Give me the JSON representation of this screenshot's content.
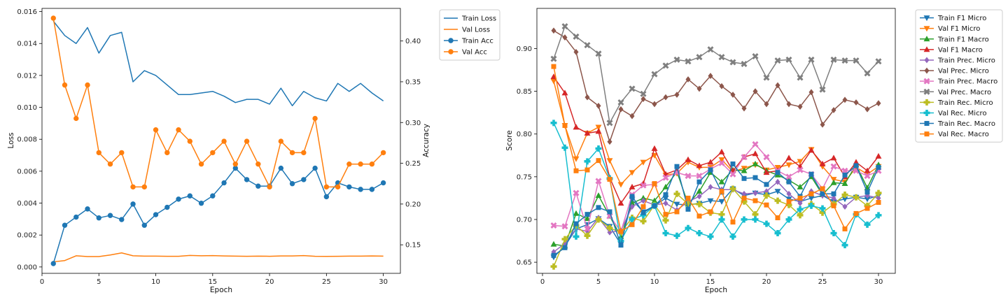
{
  "chart_data": [
    {
      "type": "line",
      "xlabel": "Epoch",
      "ylabel": "Loss",
      "ylabel_right": "Accuracy",
      "x": [
        1,
        2,
        3,
        4,
        5,
        6,
        7,
        8,
        9,
        10,
        11,
        12,
        13,
        14,
        15,
        16,
        17,
        18,
        19,
        20,
        21,
        22,
        23,
        24,
        25,
        26,
        27,
        28,
        29,
        30
      ],
      "xlim": [
        0,
        31.5
      ],
      "xticks": [
        0,
        5,
        10,
        15,
        20,
        25,
        30
      ],
      "ylim": [
        -0.0004,
        0.0162
      ],
      "yticks": [
        0.0,
        0.002,
        0.004,
        0.006,
        0.008,
        0.01,
        0.012,
        0.014,
        0.016
      ],
      "ytick_labels": [
        "0.000",
        "0.002",
        "0.004",
        "0.006",
        "0.008",
        "0.010",
        "0.012",
        "0.014",
        "0.016"
      ],
      "ylim_right": [
        0.115,
        0.44
      ],
      "yticks_right": [
        0.15,
        0.2,
        0.25,
        0.3,
        0.35,
        0.4
      ],
      "ytick_labels_right": [
        "0.15",
        "0.20",
        "0.25",
        "0.30",
        "0.35",
        "0.40"
      ],
      "legend_placement": "outside top-right",
      "series": [
        {
          "name": "Train Loss",
          "axis": "left",
          "color": "#1f77b4",
          "marker": "none",
          "values": [
            0.0154,
            0.0145,
            0.014,
            0.015,
            0.0134,
            0.0145,
            0.0147,
            0.0116,
            0.0123,
            0.012,
            0.0114,
            0.0108,
            0.0108,
            0.0109,
            0.011,
            0.0107,
            0.0103,
            0.0105,
            0.0105,
            0.0102,
            0.0112,
            0.0101,
            0.011,
            0.0106,
            0.0104,
            0.0115,
            0.011,
            0.0115,
            0.0109,
            0.0104
          ]
        },
        {
          "name": "Val Loss",
          "axis": "left",
          "color": "#ff7f0e",
          "marker": "none",
          "values": [
            0.00032,
            0.0004,
            0.0007,
            0.00065,
            0.00065,
            0.00075,
            0.00088,
            0.0007,
            0.00068,
            0.00068,
            0.00067,
            0.00067,
            0.00072,
            0.0007,
            0.00071,
            0.00069,
            0.00068,
            0.00067,
            0.00068,
            0.00067,
            0.00069,
            0.00069,
            0.00071,
            0.00067,
            0.00066,
            0.00067,
            0.00068,
            0.00068,
            0.00069,
            0.00068
          ]
        },
        {
          "name": "Train Acc",
          "axis": "right",
          "color": "#1f77b4",
          "marker": "circle",
          "values": [
            0.127,
            0.174,
            0.184,
            0.194,
            0.183,
            0.186,
            0.181,
            0.2,
            0.174,
            0.187,
            0.196,
            0.206,
            0.21,
            0.201,
            0.21,
            0.226,
            0.244,
            0.23,
            0.222,
            0.222,
            0.244,
            0.225,
            0.23,
            0.244,
            0.209,
            0.226,
            0.221,
            0.218,
            0.218,
            0.226
          ]
        },
        {
          "name": "Val Acc",
          "axis": "right",
          "color": "#ff7f0e",
          "marker": "circle",
          "values": [
            0.428,
            0.346,
            0.305,
            0.346,
            0.263,
            0.249,
            0.263,
            0.221,
            0.221,
            0.291,
            0.263,
            0.291,
            0.277,
            0.249,
            0.263,
            0.277,
            0.249,
            0.277,
            0.249,
            0.221,
            0.277,
            0.263,
            0.263,
            0.305,
            0.221,
            0.221,
            0.249,
            0.249,
            0.249,
            0.263
          ]
        }
      ]
    },
    {
      "type": "line",
      "xlabel": "Epoch",
      "ylabel": "Score",
      "x": [
        1,
        2,
        3,
        4,
        5,
        6,
        7,
        8,
        9,
        10,
        11,
        12,
        13,
        14,
        15,
        16,
        17,
        18,
        19,
        20,
        21,
        22,
        23,
        24,
        25,
        26,
        27,
        28,
        29,
        30
      ],
      "xlim": [
        -0.5,
        31.5
      ],
      "xticks": [
        0,
        5,
        10,
        15,
        20,
        25,
        30
      ],
      "ylim": [
        0.637,
        0.947
      ],
      "yticks": [
        0.65,
        0.7,
        0.75,
        0.8,
        0.85,
        0.9
      ],
      "ytick_labels": [
        "0.65",
        "0.70",
        "0.75",
        "0.80",
        "0.85",
        "0.90"
      ],
      "legend_placement": "outside top-right",
      "series": [
        {
          "name": "Train F1 Micro",
          "color": "#1f77b4",
          "marker": "triangle-down",
          "values": [
            0.656,
            0.669,
            0.689,
            0.694,
            0.701,
            0.692,
            0.671,
            0.723,
            0.709,
            0.716,
            0.725,
            0.718,
            0.717,
            0.719,
            0.722,
            0.721,
            0.736,
            0.728,
            0.731,
            0.729,
            0.733,
            0.724,
            0.721,
            0.725,
            0.728,
            0.721,
            0.724,
            0.726,
            0.724,
            0.728
          ]
        },
        {
          "name": "Val F1 Micro",
          "color": "#ff7f0e",
          "marker": "triangle-down",
          "values": [
            0.862,
            0.81,
            0.771,
            0.801,
            0.808,
            0.769,
            0.741,
            0.755,
            0.767,
            0.775,
            0.752,
            0.754,
            0.767,
            0.761,
            0.761,
            0.77,
            0.756,
            0.76,
            0.764,
            0.758,
            0.761,
            0.764,
            0.768,
            0.782,
            0.762,
            0.747,
            0.744,
            0.761,
            0.753,
            0.762
          ]
        },
        {
          "name": "Train F1 Macro",
          "color": "#2ca02c",
          "marker": "triangle-up",
          "values": [
            0.671,
            0.669,
            0.707,
            0.701,
            0.728,
            0.704,
            0.68,
            0.719,
            0.725,
            0.722,
            0.738,
            0.756,
            0.718,
            0.733,
            0.755,
            0.744,
            0.758,
            0.757,
            0.765,
            0.757,
            0.752,
            0.746,
            0.738,
            0.75,
            0.729,
            0.743,
            0.742,
            0.764,
            0.737,
            0.764
          ]
        },
        {
          "name": "Val F1 Macro",
          "color": "#d62728",
          "marker": "triangle-up",
          "values": [
            0.867,
            0.848,
            0.808,
            0.801,
            0.803,
            0.749,
            0.719,
            0.738,
            0.742,
            0.783,
            0.753,
            0.758,
            0.77,
            0.763,
            0.767,
            0.779,
            0.757,
            0.773,
            0.777,
            0.755,
            0.757,
            0.772,
            0.762,
            0.781,
            0.765,
            0.772,
            0.75,
            0.767,
            0.757,
            0.774
          ]
        },
        {
          "name": "Train Prec. Micro",
          "color": "#9467bd",
          "marker": "diamond",
          "values": [
            0.662,
            0.672,
            0.689,
            0.686,
            0.702,
            0.685,
            0.687,
            0.715,
            0.722,
            0.717,
            0.719,
            0.711,
            0.721,
            0.727,
            0.738,
            0.735,
            0.735,
            0.73,
            0.731,
            0.733,
            0.744,
            0.73,
            0.719,
            0.733,
            0.728,
            0.725,
            0.715,
            0.726,
            0.728,
            0.725
          ]
        },
        {
          "name": "Val Prec. Micro",
          "color": "#8c564b",
          "marker": "diamond",
          "values": [
            0.921,
            0.913,
            0.896,
            0.843,
            0.833,
            0.791,
            0.829,
            0.821,
            0.841,
            0.835,
            0.843,
            0.846,
            0.864,
            0.853,
            0.868,
            0.856,
            0.846,
            0.83,
            0.85,
            0.835,
            0.857,
            0.835,
            0.832,
            0.849,
            0.811,
            0.828,
            0.84,
            0.837,
            0.829,
            0.836
          ]
        },
        {
          "name": "Train Prec. Macro",
          "color": "#e377c2",
          "marker": "x",
          "values": [
            0.693,
            0.692,
            0.731,
            0.689,
            0.745,
            0.704,
            0.686,
            0.729,
            0.74,
            0.741,
            0.749,
            0.755,
            0.751,
            0.751,
            0.759,
            0.766,
            0.753,
            0.773,
            0.788,
            0.773,
            0.757,
            0.75,
            0.758,
            0.753,
            0.736,
            0.762,
            0.757,
            0.757,
            0.751,
            0.757
          ]
        },
        {
          "name": "Val Prec. Macro",
          "color": "#7f7f7f",
          "marker": "x",
          "values": [
            0.888,
            0.926,
            0.914,
            0.904,
            0.894,
            0.813,
            0.837,
            0.853,
            0.847,
            0.87,
            0.88,
            0.887,
            0.885,
            0.89,
            0.899,
            0.89,
            0.884,
            0.882,
            0.891,
            0.866,
            0.886,
            0.887,
            0.866,
            0.887,
            0.852,
            0.887,
            0.886,
            0.886,
            0.871,
            0.885
          ]
        },
        {
          "name": "Train Rec. Micro",
          "color": "#bcbd22",
          "marker": "plus",
          "values": [
            0.645,
            0.677,
            0.693,
            0.681,
            0.7,
            0.69,
            0.685,
            0.702,
            0.698,
            0.717,
            0.699,
            0.73,
            0.718,
            0.718,
            0.708,
            0.706,
            0.736,
            0.721,
            0.706,
            0.728,
            0.722,
            0.717,
            0.705,
            0.718,
            0.708,
            0.718,
            0.729,
            0.726,
            0.716,
            0.731
          ]
        },
        {
          "name": "Val Rec. Micro",
          "color": "#17becf",
          "marker": "plus",
          "values": [
            0.813,
            0.784,
            0.68,
            0.768,
            0.783,
            0.748,
            0.675,
            0.7,
            0.705,
            0.716,
            0.684,
            0.681,
            0.69,
            0.684,
            0.68,
            0.7,
            0.68,
            0.7,
            0.7,
            0.695,
            0.684,
            0.7,
            0.712,
            0.716,
            0.713,
            0.684,
            0.67,
            0.706,
            0.694,
            0.705
          ]
        },
        {
          "name": "Train Rec. Macro",
          "color": "#1f77b4",
          "marker": "square",
          "values": [
            0.658,
            0.667,
            0.695,
            0.706,
            0.714,
            0.709,
            0.67,
            0.727,
            0.708,
            0.716,
            0.729,
            0.762,
            0.712,
            0.744,
            0.758,
            0.732,
            0.765,
            0.748,
            0.749,
            0.741,
            0.755,
            0.744,
            0.727,
            0.753,
            0.73,
            0.73,
            0.752,
            0.763,
            0.732,
            0.761
          ]
        },
        {
          "name": "Val Rec. Macro",
          "color": "#ff7f0e",
          "marker": "square",
          "values": [
            0.879,
            0.81,
            0.757,
            0.758,
            0.769,
            0.747,
            0.686,
            0.694,
            0.715,
            0.742,
            0.706,
            0.709,
            0.725,
            0.704,
            0.709,
            0.733,
            0.697,
            0.725,
            0.722,
            0.717,
            0.702,
            0.721,
            0.725,
            0.73,
            0.736,
            0.716,
            0.689,
            0.707,
            0.713,
            0.72
          ]
        }
      ]
    }
  ]
}
